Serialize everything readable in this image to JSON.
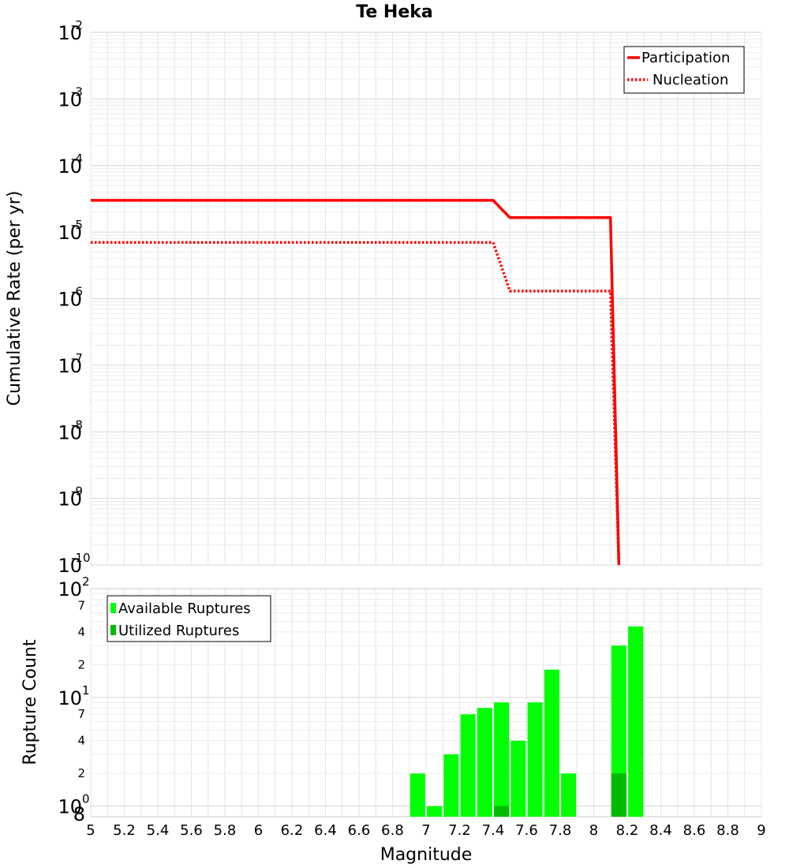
{
  "chart_data": [
    {
      "type": "line",
      "title": "Te Heka",
      "xlabel": "",
      "ylabel": "Cumulative Rate (per yr)",
      "yscale": "log",
      "xlim": [
        5,
        9
      ],
      "ylim": [
        1e-10,
        0.01
      ],
      "y_tick_exponents": [
        "-10",
        "-9",
        "-8",
        "-7",
        "-6",
        "-5",
        "-4",
        "-3",
        "-2"
      ],
      "y_tick_base": "10",
      "grid": true,
      "legend_position": "top-right",
      "series": [
        {
          "name": "Participation",
          "style": "solid",
          "color": "#ff0000",
          "x": [
            5.0,
            7.4,
            7.5,
            8.1,
            8.15
          ],
          "y": [
            3e-05,
            3e-05,
            1.65e-05,
            1.65e-05,
            1e-10
          ]
        },
        {
          "name": "Nucleation",
          "style": "dotted",
          "color": "#ff0000",
          "x": [
            5.0,
            7.4,
            7.5,
            8.1,
            8.15
          ],
          "y": [
            7e-06,
            7e-06,
            1.3e-06,
            1.3e-06,
            1e-10
          ]
        }
      ]
    },
    {
      "type": "bar",
      "xlabel": "Magnitude",
      "ylabel": "Rupture Count",
      "yscale": "log",
      "xlim": [
        5,
        9
      ],
      "ylim": [
        0.8,
        100
      ],
      "x_ticks": [
        "5",
        "5.2",
        "5.4",
        "5.6",
        "5.8",
        "6",
        "6.2",
        "6.4",
        "6.6",
        "6.8",
        "7",
        "7.2",
        "7.4",
        "7.6",
        "7.8",
        "8",
        "8.2",
        "8.4",
        "8.6",
        "8.8",
        "9"
      ],
      "y_major_ticks": [
        {
          "value": 1,
          "base": "10",
          "exp": "0"
        },
        {
          "value": 10,
          "base": "10",
          "exp": "1"
        },
        {
          "value": 100,
          "base": "10",
          "exp": "2"
        }
      ],
      "y_minor_ticks": [
        {
          "value": 0.8,
          "label": "8"
        },
        {
          "value": 2,
          "label": "2"
        },
        {
          "value": 4,
          "label": "4"
        },
        {
          "value": 7,
          "label": "7"
        },
        {
          "value": 20,
          "label": "2"
        },
        {
          "value": 40,
          "label": "4"
        },
        {
          "value": 70,
          "label": "7"
        }
      ],
      "grid": true,
      "legend_position": "top-left",
      "bar_width": 0.09,
      "series": [
        {
          "name": "Available Ruptures",
          "color": "#00ff00",
          "x": [
            6.95,
            7.05,
            7.15,
            7.25,
            7.35,
            7.45,
            7.55,
            7.65,
            7.75,
            7.85,
            8.15,
            8.25
          ],
          "values": [
            2,
            1,
            3,
            7,
            8,
            9,
            4,
            9,
            18,
            2,
            30,
            45
          ]
        },
        {
          "name": "Utilized Ruptures",
          "color": "#00bb00",
          "x": [
            7.45,
            8.15
          ],
          "values": [
            1,
            2
          ]
        }
      ]
    }
  ]
}
